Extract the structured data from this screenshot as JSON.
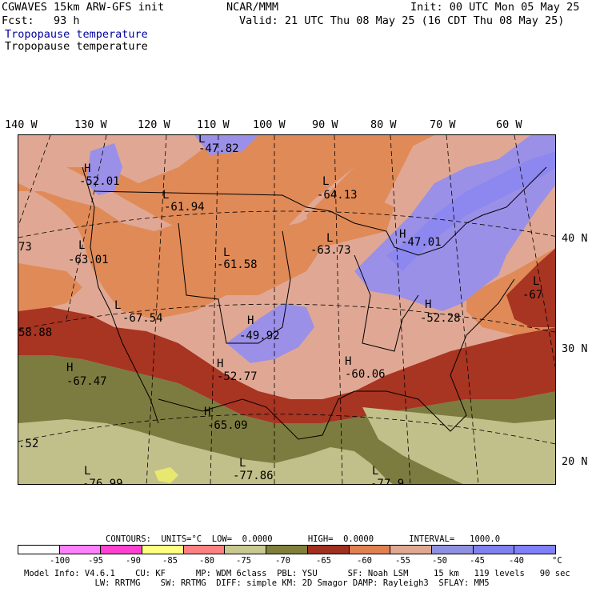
{
  "header": {
    "model": "CGWAVES 15km ARW-GFS init",
    "org": "NCAR/MMM",
    "init": "Init: 00 UTC Mon 05 May 25",
    "fcst": "Fcst:   93 h",
    "valid": "Valid: 21 UTC Thu 08 May 25 (16 CDT Thu 08 May 25)",
    "field_blue": "Tropopause temperature",
    "field_black": "Tropopause temperature"
  },
  "longitude_labels": [
    "140 W",
    "130 W",
    "120 W",
    "110 W",
    "100 W",
    "90 W",
    "80 W",
    "70 W",
    "60 W"
  ],
  "latitude_labels": [
    "40 N",
    "30 N",
    "20 N"
  ],
  "map_labels": [
    {
      "sym": "L",
      "val": "-47.82"
    },
    {
      "sym": "H",
      "val": "-52.01"
    },
    {
      "sym": "L",
      "val": "-64.13"
    },
    {
      "sym": "L",
      "val": "-61.94"
    },
    {
      "sym": "L",
      "val": "-63.01"
    },
    {
      "sym": "L",
      "val": "-61.58"
    },
    {
      "sym": "L",
      "val": "-63.73"
    },
    {
      "sym": "H",
      "val": "-47.01"
    },
    {
      "sym": "L",
      "val": "-67"
    },
    {
      "sym": "",
      "val": "73"
    },
    {
      "sym": "H",
      "val": "-52.28"
    },
    {
      "sym": "L",
      "val": "-67.54"
    },
    {
      "sym": "H",
      "val": "-49.92"
    },
    {
      "sym": "",
      "val": "58.88"
    },
    {
      "sym": "H",
      "val": "-60.06"
    },
    {
      "sym": "H",
      "val": "-52.77"
    },
    {
      "sym": "H",
      "val": "-67.47"
    },
    {
      "sym": "H",
      "val": "-65.09"
    },
    {
      "sym": "",
      "val": ".52"
    },
    {
      "sym": "L",
      "val": "-77.86"
    },
    {
      "sym": "L",
      "val": "-76.99"
    },
    {
      "sym": "L",
      "val": "-77.9"
    }
  ],
  "contours_line": "CONTOURS:  UNITS=°C  LOW=  0.0000       HIGH=  0.0000       INTERVAL=   1000.0",
  "legend": {
    "colors": [
      "#ffffff",
      "#ff80ff",
      "#ff40d0",
      "#ffff80",
      "#ff8080",
      "#c8c890",
      "#80803c",
      "#a03020",
      "#e08050",
      "#e0a890",
      "#9090e0",
      "#8080f0",
      "#8080ff"
    ],
    "tick_labels": [
      "-100",
      "-95",
      "-90",
      "-85",
      "-80",
      "-75",
      "-70",
      "-65",
      "-60",
      "-55",
      "-50",
      "-45",
      "-40",
      "°C"
    ]
  },
  "model_info_line1": "Model Info: V4.6.1    CU: KF      MP: WDM 6class  PBL: YSU      SF: Noah LSM     15 km   119 levels   90 sec",
  "model_info_line2": "              LW: RRTMG    SW: RRTMG  DIFF: simple KM: 2D Smagor DAMP: Rayleigh3  SFLAY: MM5",
  "fill_colors": {
    "purple": "#9a90e8",
    "blue": "#8c88f0",
    "pink": "#e0a894",
    "orange": "#e08a58",
    "red": "#a83422",
    "olive": "#7c7c40",
    "khaki": "#c2c08a",
    "yellow": "#e8e870"
  }
}
